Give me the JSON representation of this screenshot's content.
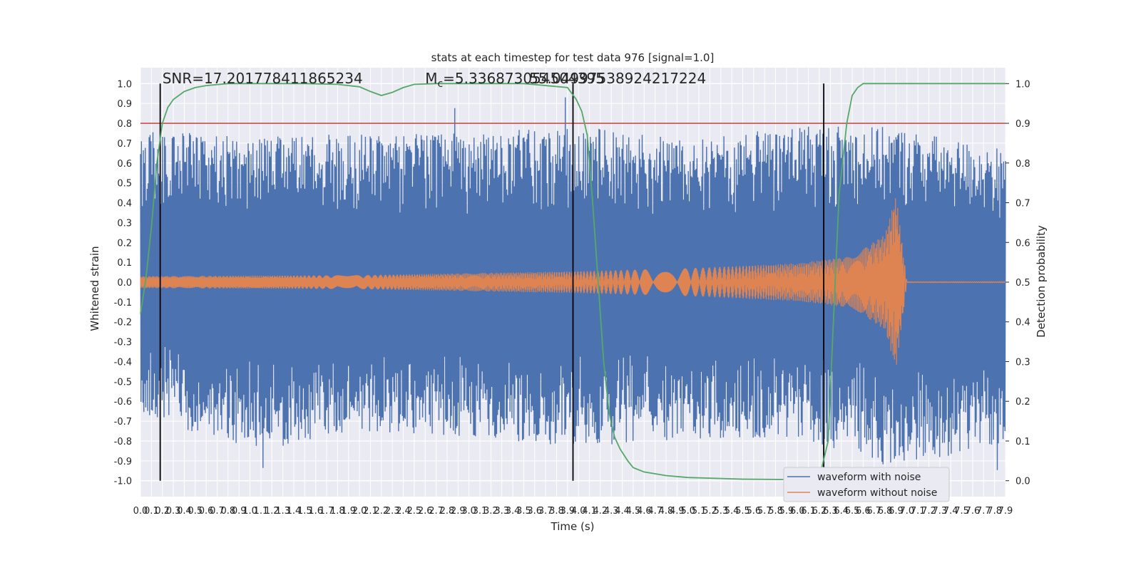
{
  "chart_data": {
    "type": "line",
    "title": "stats at each timestep for test data 976 [signal=1.0]",
    "xlabel": "Time (s)",
    "ylabel": "Whitened strain",
    "y2label": "Detection probability",
    "xlim": [
      0.0,
      7.9
    ],
    "ylim": [
      -1.08,
      1.08
    ],
    "y2lim": [
      -0.04,
      1.04
    ],
    "x_ticks": [
      0.0,
      0.1,
      0.2,
      0.3,
      0.4,
      0.5,
      0.6,
      0.7,
      0.8,
      0.9,
      1.0,
      1.1,
      1.2,
      1.3,
      1.4,
      1.5,
      1.6,
      1.7,
      1.8,
      1.9,
      2.0,
      2.1,
      2.2,
      2.3,
      2.4,
      2.5,
      2.6,
      2.7,
      2.8,
      2.9,
      3.0,
      3.1,
      3.2,
      3.3,
      3.4,
      3.5,
      3.6,
      3.7,
      3.8,
      3.9,
      4.0,
      4.1,
      4.2,
      4.3,
      4.4,
      4.5,
      4.6,
      4.7,
      4.8,
      4.9,
      5.0,
      5.1,
      5.2,
      5.3,
      5.4,
      5.5,
      5.6,
      5.7,
      5.8,
      5.9,
      6.0,
      6.1,
      6.2,
      6.3,
      6.4,
      6.5,
      6.6,
      6.7,
      6.8,
      6.9,
      7.0,
      7.1,
      7.2,
      7.3,
      7.4,
      7.5,
      7.6,
      7.7,
      7.8,
      7.9
    ],
    "y_ticks": [
      -1.0,
      -0.9,
      -0.8,
      -0.7,
      -0.6,
      -0.5,
      -0.4,
      -0.3,
      -0.2,
      -0.1,
      0.0,
      0.1,
      0.2,
      0.3,
      0.4,
      0.5,
      0.6,
      0.7,
      0.8,
      0.9,
      1.0
    ],
    "y2_ticks": [
      0.0,
      0.1,
      0.2,
      0.3,
      0.4,
      0.5,
      0.6,
      0.7,
      0.8,
      0.9,
      1.0
    ],
    "grid": true,
    "legend_position": "bottom-right",
    "series": [
      {
        "name": "waveform with noise",
        "color": "#4c72b0",
        "axis": "left",
        "envelope": {
          "x": [
            0.0,
            1.0,
            2.0,
            3.0,
            4.0,
            5.0,
            6.0,
            6.9,
            7.9
          ],
          "upper": [
            0.78,
            0.73,
            0.75,
            0.76,
            0.79,
            0.72,
            0.8,
            0.78,
            0.67
          ],
          "lower": [
            -0.66,
            -0.86,
            -0.75,
            -0.78,
            -0.83,
            -0.79,
            -0.78,
            -0.94,
            -0.81
          ],
          "peak_max": 1.0,
          "peak_min": -0.95
        }
      },
      {
        "name": "waveform without noise",
        "color": "#dd8452",
        "axis": "left",
        "chirp": {
          "x": [
            0.0,
            2.0,
            4.0,
            5.0,
            6.0,
            6.5,
            6.8,
            6.9,
            7.0,
            7.9
          ],
          "amplitude": [
            0.03,
            0.035,
            0.055,
            0.07,
            0.095,
            0.13,
            0.24,
            0.44,
            0.002,
            0.002
          ],
          "merger_time": 6.97
        }
      },
      {
        "name": "Detection probability",
        "color": "#55a868",
        "axis": "right",
        "x": [
          0.0,
          0.05,
          0.1,
          0.15,
          0.2,
          0.25,
          0.3,
          0.4,
          0.5,
          0.6,
          0.8,
          1.0,
          1.5,
          1.8,
          2.0,
          2.1,
          2.2,
          2.3,
          2.4,
          2.5,
          2.7,
          3.0,
          3.5,
          3.9,
          3.98,
          4.03,
          4.08,
          4.13,
          4.18,
          4.23,
          4.28,
          4.33,
          4.38,
          4.45,
          4.5,
          4.6,
          4.8,
          5.0,
          5.5,
          5.9,
          6.0,
          6.15,
          6.22,
          6.28,
          6.32,
          6.38,
          6.45,
          6.5,
          6.55,
          6.6,
          7.0,
          7.5,
          7.9
        ],
        "y": [
          0.42,
          0.51,
          0.64,
          0.8,
          0.9,
          0.94,
          0.96,
          0.98,
          0.99,
          0.995,
          1.0,
          1.0,
          1.0,
          0.998,
          0.992,
          0.98,
          0.97,
          0.978,
          0.99,
          0.998,
          1.0,
          1.0,
          1.0,
          0.99,
          0.96,
          0.93,
          0.87,
          0.7,
          0.5,
          0.3,
          0.17,
          0.11,
          0.08,
          0.05,
          0.033,
          0.022,
          0.013,
          0.008,
          0.004,
          0.003,
          0.004,
          0.01,
          0.03,
          0.1,
          0.35,
          0.72,
          0.9,
          0.97,
          0.99,
          1.0,
          1.0,
          1.0,
          1.0
        ]
      }
    ],
    "threshold": {
      "value": 0.9,
      "axis": "right",
      "color": "#c44e52"
    },
    "vertical_markers": [
      0.18,
      3.95,
      6.24
    ],
    "annotations": [
      {
        "text": "SNR=17.201778411865234",
        "x": 0.2,
        "y": 1.03
      },
      {
        "text": "$M_c$=5.336873054504395",
        "x": 2.6,
        "y": 1.03
      },
      {
        "text": "55.0499753892421​7224",
        "x": 3.55,
        "y": 1.03
      }
    ]
  }
}
